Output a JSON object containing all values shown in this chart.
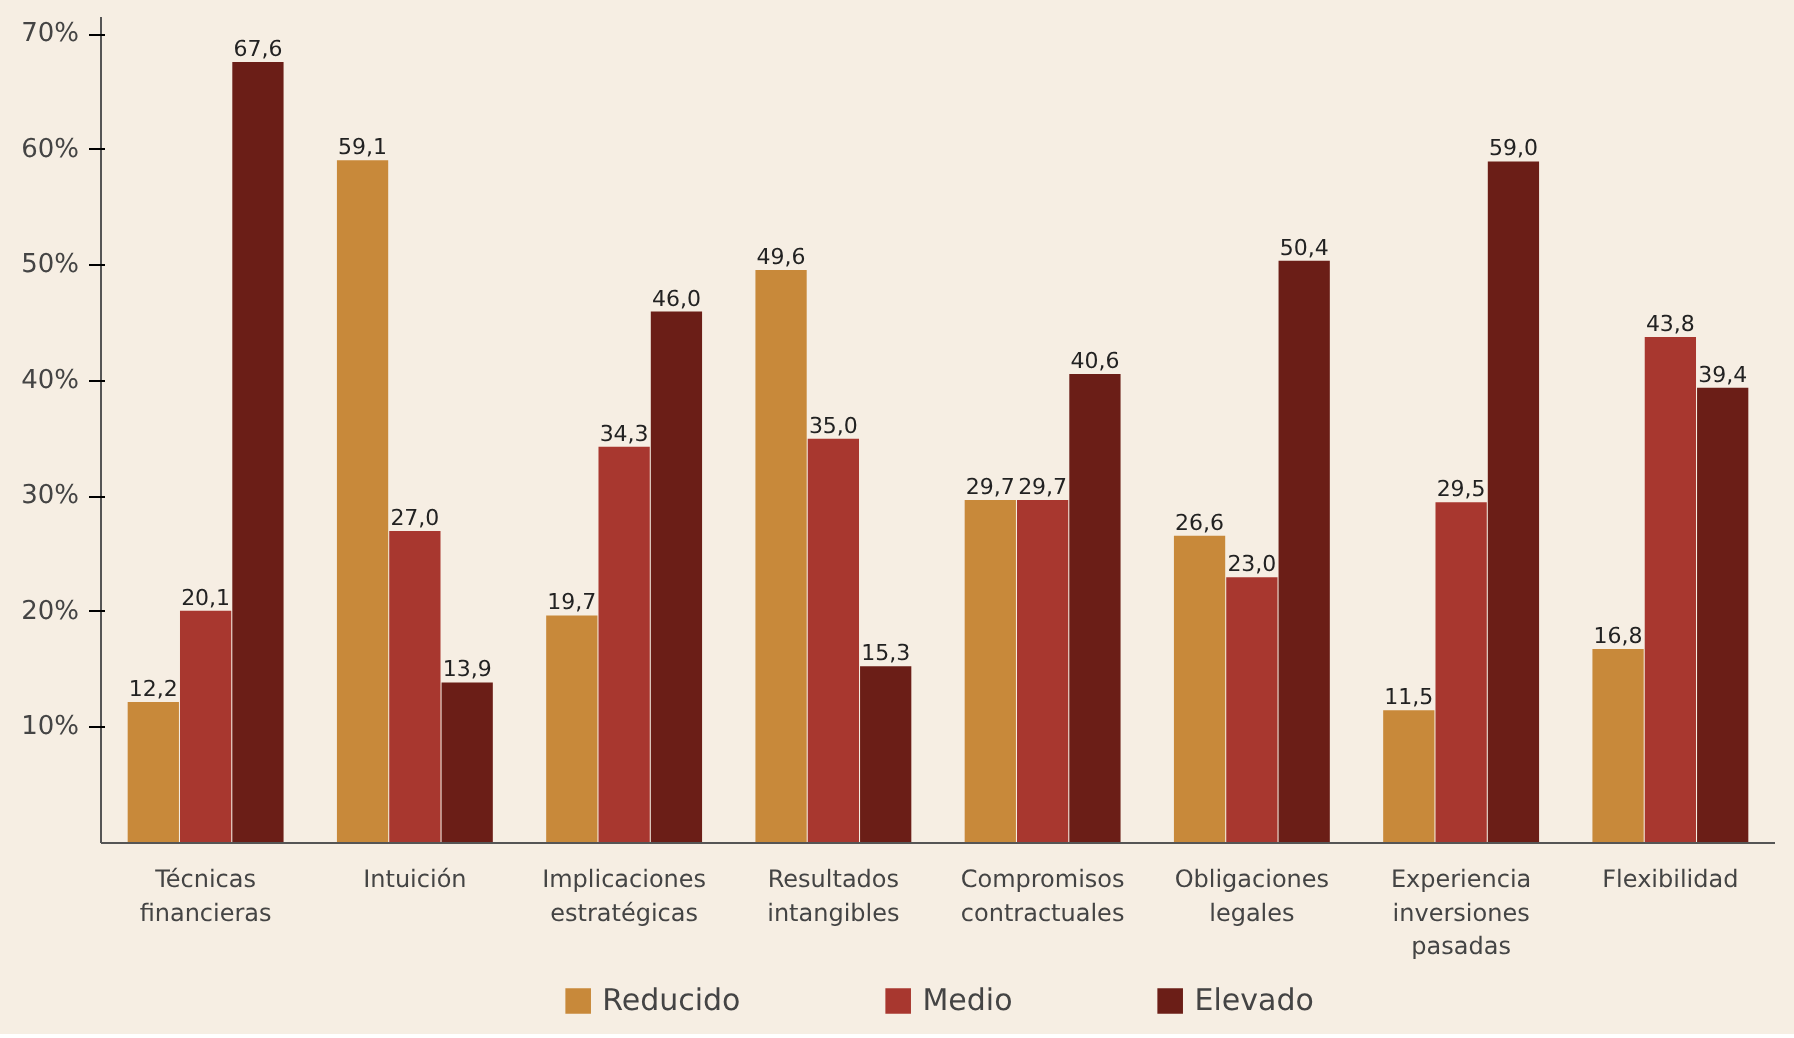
{
  "chart_data": {
    "type": "bar",
    "categories": [
      "Técnicas financieras",
      "Intuición",
      "Implicaciones estratégicas",
      "Resultados intangibles",
      "Compromisos contractuales",
      "Obligaciones legales",
      "Experiencia inversiones pasadas",
      "Flexibilidad"
    ],
    "series": [
      {
        "name": "Reducido",
        "color": "#c8893a",
        "values": [
          12.2,
          59.1,
          19.7,
          49.6,
          29.7,
          26.6,
          11.5,
          16.8
        ],
        "value_labels": [
          "12,2",
          "59,1",
          "19,7",
          "49,6",
          "29,7",
          "26,6",
          "11,5",
          "16,8"
        ]
      },
      {
        "name": "Medio",
        "color": "#a8372f",
        "values": [
          20.1,
          27.0,
          34.3,
          35.0,
          29.7,
          23.0,
          29.5,
          43.8
        ],
        "value_labels": [
          "20,1",
          "27,0",
          "34,3",
          "35,0",
          "29,7",
          "23,0",
          "29,5",
          "43,8"
        ]
      },
      {
        "name": "Elevado",
        "color": "#6b1e17",
        "values": [
          67.6,
          13.9,
          46.0,
          15.3,
          40.6,
          50.4,
          59.0,
          39.4
        ],
        "value_labels": [
          "67,6",
          "13,9",
          "46,0",
          "15,3",
          "40,6",
          "50,4",
          "59,0",
          "39,4"
        ]
      }
    ],
    "ylim": [
      0,
      71.5
    ],
    "yticks": [
      {
        "value": 10,
        "label": "10%"
      },
      {
        "value": 20,
        "label": "20%"
      },
      {
        "value": 30,
        "label": "30%"
      },
      {
        "value": 40,
        "label": "40%"
      },
      {
        "value": 50,
        "label": "50%"
      },
      {
        "value": 60,
        "label": "60%"
      },
      {
        "value": 70,
        "label": "70%"
      }
    ],
    "grid": false,
    "legend": "bottom"
  }
}
